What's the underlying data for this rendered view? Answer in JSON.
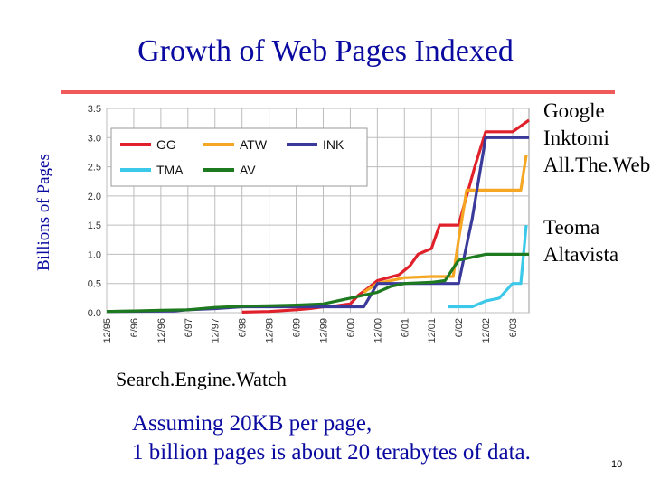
{
  "slide": {
    "title": "Growth of Web Pages Indexed",
    "side_labels_top": [
      "Google",
      "Inktomi",
      "All.The.Web"
    ],
    "side_labels_bottom": [
      "Teoma",
      "Altavista"
    ],
    "source": "Search.Engine.Watch",
    "note_lines": [
      "Assuming 20KB per page,",
      "1 billion pages is about 20 terabytes of data."
    ],
    "page_number": "10"
  },
  "chart_data": {
    "type": "line",
    "title": "",
    "xlabel": "",
    "ylabel": "Billions of Pages",
    "ylim": [
      0,
      3.5
    ],
    "y_ticks": [
      "0.0",
      "0.5",
      "1.0",
      "1.5",
      "2.0",
      "2.5",
      "3.0",
      "3.5"
    ],
    "x_ticks": [
      "12/95",
      "6/96",
      "12/96",
      "6/97",
      "12/97",
      "6/98",
      "12/98",
      "6/99",
      "12/99",
      "6/00",
      "12/00",
      "6/01",
      "12/01",
      "6/02",
      "12/02",
      "6/03"
    ],
    "xlim": [
      0,
      15.6
    ],
    "grid": true,
    "legend_position": "top-left",
    "colors": {
      "GG": "#e0202a",
      "ATW": "#f5a623",
      "INK": "#3a3a9a",
      "TMA": "#3cc8e8",
      "AV": "#1e7a1e",
      "grid": "#bdbdbd"
    },
    "series": [
      {
        "name": "GG",
        "x": [
          5,
          6,
          7,
          7.5,
          8,
          8.5,
          9,
          9.3,
          9.6,
          10,
          10.4,
          10.8,
          11.2,
          11.5,
          12,
          12.3,
          12.6,
          12.8,
          13,
          13.3,
          13.6,
          14,
          14.5,
          15,
          15.3,
          15.6
        ],
        "y": [
          0.01,
          0.02,
          0.05,
          0.07,
          0.1,
          0.12,
          0.15,
          0.3,
          0.4,
          0.55,
          0.6,
          0.65,
          0.8,
          1.0,
          1.1,
          1.5,
          1.5,
          1.5,
          1.5,
          2.0,
          2.5,
          3.1,
          3.1,
          3.1,
          3.2,
          3.3
        ]
      },
      {
        "name": "ATW",
        "x": [
          9.5,
          10,
          11,
          12,
          12.8,
          13,
          13.3,
          13.6,
          14,
          15,
          15.3,
          15.5
        ],
        "y": [
          0.35,
          0.5,
          0.6,
          0.62,
          0.62,
          1.25,
          2.1,
          2.1,
          2.1,
          2.1,
          2.1,
          2.7
        ]
      },
      {
        "name": "INK",
        "x": [
          0,
          2.5,
          3,
          4,
          5,
          6,
          7,
          8,
          9,
          9.5,
          10,
          11,
          12.5,
          13,
          13.5,
          14,
          15,
          15.6
        ],
        "y": [
          0.02,
          0.03,
          0.05,
          0.07,
          0.1,
          0.1,
          0.1,
          0.1,
          0.1,
          0.1,
          0.5,
          0.5,
          0.5,
          0.5,
          1.6,
          3.0,
          3.0,
          3.0
        ]
      },
      {
        "name": "TMA",
        "x": [
          12.6,
          13,
          13.5,
          14,
          14.5,
          15,
          15.3,
          15.5
        ],
        "y": [
          0.1,
          0.1,
          0.1,
          0.2,
          0.25,
          0.5,
          0.5,
          1.5
        ]
      },
      {
        "name": "AV",
        "x": [
          0,
          1,
          2,
          3,
          4,
          5,
          6,
          7,
          8,
          9,
          9.5,
          10,
          10.5,
          11,
          12,
          12.5,
          13,
          13.5,
          14,
          14.5,
          15,
          15.6
        ],
        "y": [
          0.02,
          0.03,
          0.04,
          0.05,
          0.09,
          0.11,
          0.12,
          0.13,
          0.15,
          0.25,
          0.3,
          0.35,
          0.45,
          0.5,
          0.52,
          0.55,
          0.9,
          0.95,
          1.0,
          1.0,
          1.0,
          1.0
        ]
      }
    ]
  }
}
